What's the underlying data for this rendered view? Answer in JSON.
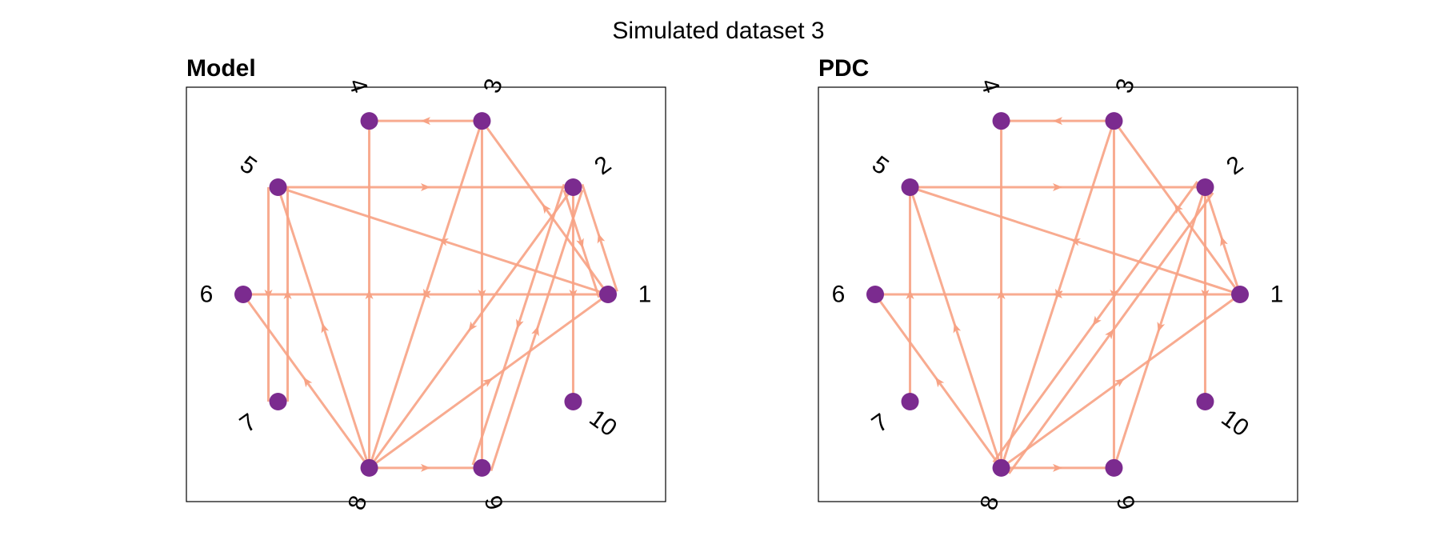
{
  "figure_title": "Simulated dataset 3",
  "colors": {
    "edge": "#f7a284",
    "node": "#7b2b8f",
    "frame": "#000000",
    "text": "#000000"
  },
  "nodes": [
    "1",
    "2",
    "3",
    "4",
    "5",
    "6",
    "7",
    "8",
    "9",
    "10"
  ],
  "panels": [
    {
      "title": "Model",
      "edges": [
        {
          "from": "1",
          "to": "2"
        },
        {
          "from": "1",
          "to": "3"
        },
        {
          "from": "1",
          "to": "5"
        },
        {
          "from": "1",
          "to": "6"
        },
        {
          "from": "2",
          "to": "1"
        },
        {
          "from": "2",
          "to": "8"
        },
        {
          "from": "2",
          "to": "9"
        },
        {
          "from": "2",
          "to": "10"
        },
        {
          "from": "3",
          "to": "4"
        },
        {
          "from": "3",
          "to": "8"
        },
        {
          "from": "3",
          "to": "9"
        },
        {
          "from": "5",
          "to": "2"
        },
        {
          "from": "5",
          "to": "7"
        },
        {
          "from": "7",
          "to": "5"
        },
        {
          "from": "8",
          "to": "1"
        },
        {
          "from": "8",
          "to": "4"
        },
        {
          "from": "8",
          "to": "5"
        },
        {
          "from": "8",
          "to": "6"
        },
        {
          "from": "8",
          "to": "9"
        },
        {
          "from": "9",
          "to": "2"
        }
      ]
    },
    {
      "title": "PDC",
      "edges": [
        {
          "from": "1",
          "to": "2"
        },
        {
          "from": "1",
          "to": "3"
        },
        {
          "from": "1",
          "to": "5"
        },
        {
          "from": "1",
          "to": "6"
        },
        {
          "from": "2",
          "to": "8"
        },
        {
          "from": "2",
          "to": "9"
        },
        {
          "from": "2",
          "to": "10"
        },
        {
          "from": "3",
          "to": "4"
        },
        {
          "from": "3",
          "to": "8"
        },
        {
          "from": "3",
          "to": "9"
        },
        {
          "from": "5",
          "to": "2"
        },
        {
          "from": "7",
          "to": "5"
        },
        {
          "from": "8",
          "to": "1"
        },
        {
          "from": "8",
          "to": "2"
        },
        {
          "from": "8",
          "to": "4"
        },
        {
          "from": "8",
          "to": "5"
        },
        {
          "from": "8",
          "to": "6"
        },
        {
          "from": "8",
          "to": "9"
        }
      ]
    }
  ]
}
